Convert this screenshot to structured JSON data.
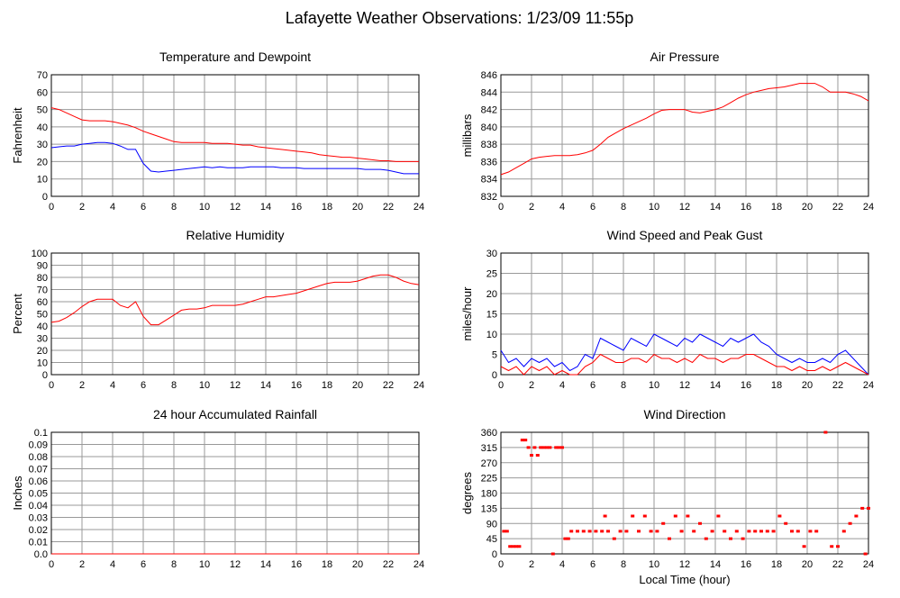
{
  "page_title": "Lafayette Weather Observations: 1/23/09 11:55p",
  "chart_data": [
    {
      "type": "line",
      "title": "Temperature and Dewpoint",
      "ylabel": "Fahrenheit",
      "x": [
        0,
        0.5,
        1,
        1.5,
        2,
        2.5,
        3,
        3.5,
        4,
        4.5,
        5,
        5.5,
        6,
        6.5,
        7,
        7.5,
        8,
        8.5,
        9,
        9.5,
        10,
        10.5,
        11,
        11.5,
        12,
        12.5,
        13,
        13.5,
        14,
        14.5,
        15,
        15.5,
        16,
        16.5,
        17,
        17.5,
        18,
        18.5,
        19,
        19.5,
        20,
        20.5,
        21,
        21.5,
        22,
        22.5,
        23,
        23.5,
        24
      ],
      "series": [
        {
          "color": "#ff0000",
          "values": [
            51,
            50,
            48,
            46,
            44,
            43.5,
            43.5,
            43.5,
            43,
            42,
            41,
            39.5,
            37.5,
            36,
            34.5,
            33,
            31.5,
            31,
            31,
            31,
            31,
            30.5,
            30.5,
            30.5,
            30,
            29.5,
            29.5,
            28.5,
            28,
            27.5,
            27,
            26.5,
            26,
            25.5,
            25,
            24,
            23.5,
            23,
            22.5,
            22.5,
            22,
            21.5,
            21,
            20.5,
            20.5,
            20,
            20,
            20,
            20
          ]
        },
        {
          "color": "#0000ff",
          "values": [
            28,
            28.5,
            29,
            29,
            30,
            30.5,
            31,
            31,
            30.5,
            29,
            27,
            27,
            19,
            14.5,
            14,
            14.5,
            15,
            15.5,
            16,
            16.5,
            17,
            16.5,
            17,
            16.5,
            16.5,
            16.5,
            17,
            17,
            17,
            17,
            16.5,
            16.5,
            16.5,
            16,
            16,
            16,
            16,
            16,
            16,
            16,
            16,
            15.5,
            15.5,
            15.5,
            15,
            14,
            13,
            13,
            13
          ]
        }
      ],
      "xlim": [
        0,
        24
      ],
      "xticks": [
        0,
        2,
        4,
        6,
        8,
        10,
        12,
        14,
        16,
        18,
        20,
        22,
        24
      ],
      "ylim": [
        0,
        70
      ],
      "yticks": [
        0,
        10,
        20,
        30,
        40,
        50,
        60,
        70
      ],
      "grid": true
    },
    {
      "type": "line",
      "title": "Air Pressure",
      "ylabel": "millibars",
      "x": [
        0,
        0.5,
        1,
        1.5,
        2,
        2.5,
        3,
        3.5,
        4,
        4.5,
        5,
        5.5,
        6,
        6.5,
        7,
        7.5,
        8,
        8.5,
        9,
        9.5,
        10,
        10.5,
        11,
        11.5,
        12,
        12.5,
        13,
        13.5,
        14,
        14.5,
        15,
        15.5,
        16,
        16.5,
        17,
        17.5,
        18,
        18.5,
        19,
        19.5,
        20,
        20.5,
        21,
        21.5,
        22,
        22.5,
        23,
        23.5,
        24
      ],
      "series": [
        {
          "color": "#ff0000",
          "values": [
            834.5,
            834.8,
            835.3,
            835.8,
            836.3,
            836.5,
            836.6,
            836.7,
            836.7,
            836.7,
            836.8,
            837,
            837.3,
            838,
            838.8,
            839.3,
            839.8,
            840.2,
            840.6,
            841,
            841.5,
            841.9,
            842,
            842,
            842,
            841.7,
            841.6,
            841.8,
            842,
            842.3,
            842.8,
            843.3,
            843.7,
            844,
            844.2,
            844.4,
            844.5,
            844.6,
            844.8,
            845,
            845,
            845,
            844.6,
            844,
            844,
            844,
            843.8,
            843.5,
            843
          ]
        }
      ],
      "xlim": [
        0,
        24
      ],
      "xticks": [
        0,
        2,
        4,
        6,
        8,
        10,
        12,
        14,
        16,
        18,
        20,
        22,
        24
      ],
      "ylim": [
        832,
        846
      ],
      "yticks": [
        832,
        834,
        836,
        838,
        840,
        842,
        844,
        846
      ],
      "grid": true
    },
    {
      "type": "line",
      "title": "Relative Humidity",
      "ylabel": "Percent",
      "x": [
        0,
        0.5,
        1,
        1.5,
        2,
        2.5,
        3,
        3.5,
        4,
        4.5,
        5,
        5.5,
        6,
        6.5,
        7,
        7.5,
        8,
        8.5,
        9,
        9.5,
        10,
        10.5,
        11,
        11.5,
        12,
        12.5,
        13,
        13.5,
        14,
        14.5,
        15,
        15.5,
        16,
        16.5,
        17,
        17.5,
        18,
        18.5,
        19,
        19.5,
        20,
        20.5,
        21,
        21.5,
        22,
        22.5,
        23,
        23.5,
        24
      ],
      "series": [
        {
          "color": "#ff0000",
          "values": [
            43,
            44,
            47,
            51,
            56,
            60,
            62,
            62,
            62,
            57,
            55,
            60,
            48,
            41,
            41,
            45,
            49,
            53,
            54,
            54,
            55,
            57,
            57,
            57,
            57,
            58,
            60,
            62,
            64,
            64,
            65,
            66,
            67,
            69,
            71,
            73,
            75,
            76,
            76,
            76,
            77,
            79,
            81,
            82,
            82,
            80,
            77,
            75,
            74
          ]
        }
      ],
      "xlim": [
        0,
        24
      ],
      "xticks": [
        0,
        2,
        4,
        6,
        8,
        10,
        12,
        14,
        16,
        18,
        20,
        22,
        24
      ],
      "ylim": [
        0,
        100
      ],
      "yticks": [
        0,
        10,
        20,
        30,
        40,
        50,
        60,
        70,
        80,
        90,
        100
      ],
      "grid": true
    },
    {
      "type": "line",
      "title": "Wind Speed and Peak Gust",
      "ylabel": "miles/hour",
      "x": [
        0,
        0.5,
        1,
        1.5,
        2,
        2.5,
        3,
        3.5,
        4,
        4.5,
        5,
        5.5,
        6,
        6.5,
        7,
        7.5,
        8,
        8.5,
        9,
        9.5,
        10,
        10.5,
        11,
        11.5,
        12,
        12.5,
        13,
        13.5,
        14,
        14.5,
        15,
        15.5,
        16,
        16.5,
        17,
        17.5,
        18,
        18.5,
        19,
        19.5,
        20,
        20.5,
        21,
        21.5,
        22,
        22.5,
        23,
        23.5,
        24
      ],
      "series": [
        {
          "color": "#0000ff",
          "values": [
            6,
            3,
            4,
            2,
            4,
            3,
            4,
            2,
            3,
            1,
            2,
            5,
            4,
            9,
            8,
            7,
            6,
            9,
            8,
            7,
            10,
            9,
            8,
            7,
            9,
            8,
            10,
            9,
            8,
            7,
            9,
            8,
            9,
            10,
            8,
            7,
            5,
            4,
            3,
            4,
            3,
            3,
            4,
            3,
            5,
            6,
            4,
            2,
            0
          ]
        },
        {
          "color": "#ff0000",
          "values": [
            2,
            1,
            2,
            0,
            2,
            1,
            2,
            0,
            1,
            0,
            0,
            2,
            3,
            5,
            4,
            3,
            3,
            4,
            4,
            3,
            5,
            4,
            4,
            3,
            4,
            3,
            5,
            4,
            4,
            3,
            4,
            4,
            5,
            5,
            4,
            3,
            2,
            2,
            1,
            2,
            1,
            1,
            2,
            1,
            2,
            3,
            2,
            1,
            0
          ]
        }
      ],
      "xlim": [
        0,
        24
      ],
      "xticks": [
        0,
        2,
        4,
        6,
        8,
        10,
        12,
        14,
        16,
        18,
        20,
        22,
        24
      ],
      "ylim": [
        0,
        30
      ],
      "yticks": [
        0,
        5,
        10,
        15,
        20,
        25,
        30
      ],
      "grid": true
    },
    {
      "type": "line",
      "title": "24 hour Accumulated Rainfall",
      "ylabel": "Inches",
      "x": [
        0,
        24
      ],
      "series": [
        {
          "color": "#ff0000",
          "values": [
            0,
            0
          ]
        }
      ],
      "xlim": [
        0,
        24
      ],
      "xticks": [
        0,
        2,
        4,
        6,
        8,
        10,
        12,
        14,
        16,
        18,
        20,
        22,
        24
      ],
      "ylim": [
        0,
        0.1
      ],
      "yticks": [
        {
          "value": 0,
          "label": "0.0"
        },
        0.01,
        0.02,
        0.03,
        0.04,
        0.05,
        0.06,
        0.07,
        0.08,
        0.09,
        0.1
      ],
      "grid": true
    },
    {
      "type": "scatter",
      "title": "Wind Direction",
      "ylabel": "degrees",
      "xlabel": "Local Time (hour)",
      "x": [
        0.2,
        0.4,
        0.6,
        0.8,
        1,
        1.2,
        1.4,
        1.6,
        1.8,
        2,
        2.2,
        2.4,
        2.6,
        2.8,
        3,
        3.2,
        3.4,
        3.6,
        3.8,
        4,
        4.2,
        4.4,
        4.6,
        5,
        5.4,
        5.8,
        6.2,
        6.6,
        6.8,
        7,
        7.4,
        7.8,
        8.2,
        8.6,
        9,
        9.4,
        9.8,
        10.2,
        10.6,
        11,
        11.4,
        11.8,
        12.2,
        12.6,
        13,
        13.4,
        13.8,
        14.2,
        14.6,
        15,
        15.4,
        15.8,
        16.2,
        16.6,
        17,
        17.4,
        17.8,
        18.2,
        18.6,
        19,
        19.4,
        19.8,
        20.2,
        20.6,
        21.2,
        21.6,
        22,
        22.4,
        22.8,
        23.2,
        23.6,
        23.8,
        24
      ],
      "series": [
        {
          "color": "#ff0000",
          "values": [
            67,
            67,
            22,
            22,
            22,
            22,
            337,
            337,
            315,
            292,
            315,
            292,
            315,
            315,
            315,
            315,
            0,
            315,
            315,
            315,
            45,
            45,
            67,
            67,
            67,
            67,
            67,
            67,
            112,
            67,
            45,
            67,
            67,
            112,
            67,
            112,
            67,
            67,
            90,
            45,
            112,
            67,
            112,
            67,
            90,
            45,
            67,
            112,
            67,
            45,
            67,
            45,
            67,
            67,
            67,
            67,
            67,
            112,
            90,
            67,
            67,
            22,
            67,
            67,
            360,
            22,
            22,
            67,
            90,
            112,
            135,
            0,
            135
          ]
        }
      ],
      "xlim": [
        0,
        24
      ],
      "xticks": [
        0,
        2,
        4,
        6,
        8,
        10,
        12,
        14,
        16,
        18,
        20,
        22,
        24
      ],
      "ylim": [
        0,
        360
      ],
      "yticks": [
        0,
        45,
        90,
        135,
        180,
        225,
        270,
        315,
        360
      ],
      "grid": true
    }
  ]
}
